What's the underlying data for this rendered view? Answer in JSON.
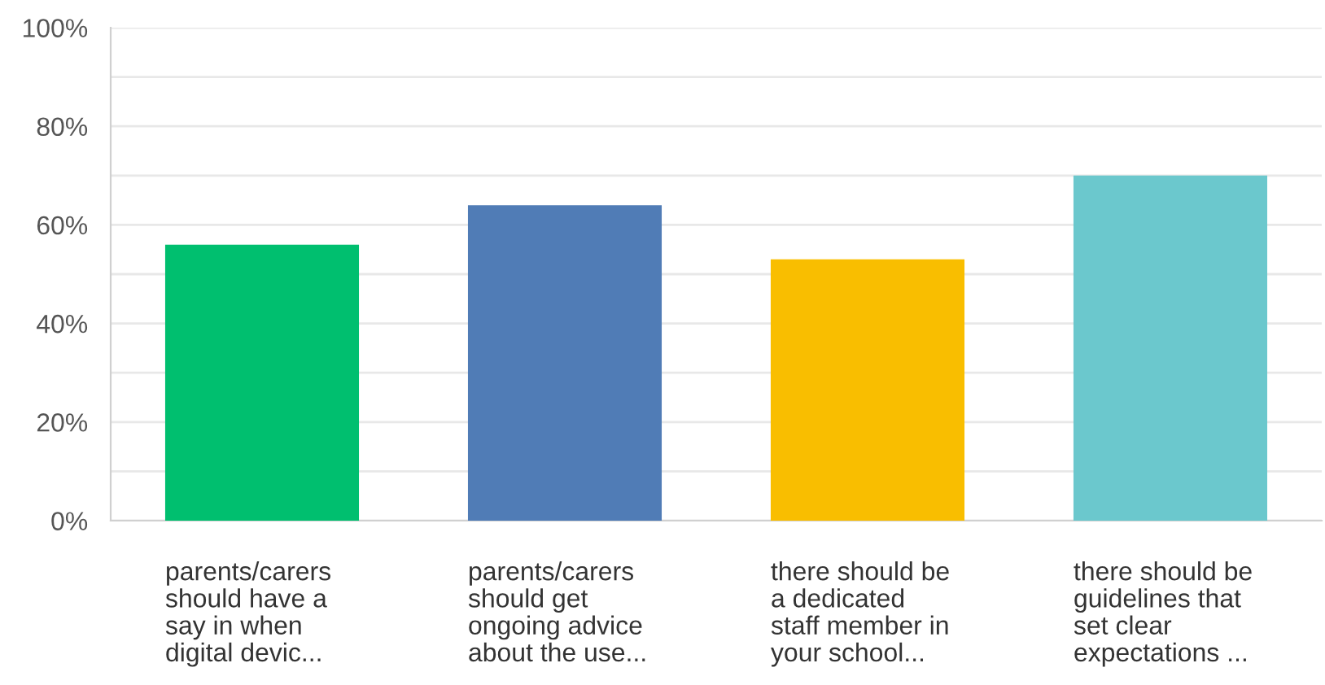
{
  "chart_data": {
    "type": "bar",
    "categories": [
      "parents/carers\nshould have a\nsay in when\ndigital devic...",
      "parents/carers\nshould get\nongoing advice\nabout the use...",
      "there should be\na dedicated\nstaff member in\nyour school...",
      "there should be\nguidelines that\nset clear\nexpectations ..."
    ],
    "values": [
      56,
      64,
      53,
      70
    ],
    "colors": [
      "#00bf6f",
      "#507cb6",
      "#f9be00",
      "#6bc8cd"
    ],
    "ylim": [
      0,
      100
    ],
    "yticks": [
      {
        "value": 0,
        "label": "0%"
      },
      {
        "value": 10,
        "label": null
      },
      {
        "value": 20,
        "label": "20%"
      },
      {
        "value": 30,
        "label": null
      },
      {
        "value": 40,
        "label": "40%"
      },
      {
        "value": 50,
        "label": null
      },
      {
        "value": 60,
        "label": "60%"
      },
      {
        "value": 70,
        "label": null
      },
      {
        "value": 80,
        "label": "80%"
      },
      {
        "value": 90,
        "label": null
      },
      {
        "value": 100,
        "label": "100%"
      }
    ],
    "grid": "y"
  }
}
